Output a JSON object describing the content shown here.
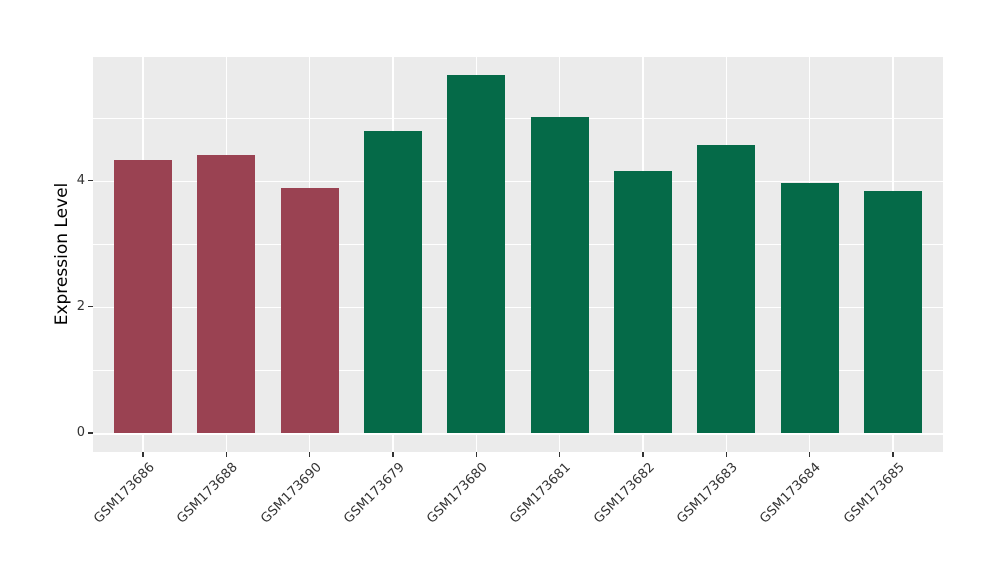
{
  "colors": {
    "panel_background": "#ebebeb",
    "figure_background": "#ffffff",
    "gridline": "#ffffff",
    "tick_text": "#333333",
    "axis_title_text": "#000000",
    "bar_maroon": "#9a4252",
    "bar_green": "#056a48"
  },
  "chart_data": {
    "type": "bar",
    "title": "",
    "xlabel": "",
    "ylabel": "Expression Level",
    "categories": [
      "GSM173686",
      "GSM173688",
      "GSM173690",
      "GSM173679",
      "GSM173680",
      "GSM173681",
      "GSM173682",
      "GSM173683",
      "GSM173684",
      "GSM173685"
    ],
    "values": [
      4.32,
      4.4,
      3.88,
      4.78,
      5.68,
      5.01,
      4.15,
      4.56,
      3.96,
      3.84
    ],
    "bar_colors": [
      "#9a4252",
      "#9a4252",
      "#9a4252",
      "#056a48",
      "#056a48",
      "#056a48",
      "#056a48",
      "#056a48",
      "#056a48",
      "#056a48"
    ],
    "y_ticks": [
      0,
      2,
      4
    ],
    "y_minor_gridlines": [
      1,
      3,
      5
    ],
    "ylim": [
      -0.3,
      5.96
    ],
    "x_tick_angle_deg": 45,
    "grid": "white major and minor horizontal lines plus vertical lines at category centers on gray panel",
    "legend": ""
  }
}
